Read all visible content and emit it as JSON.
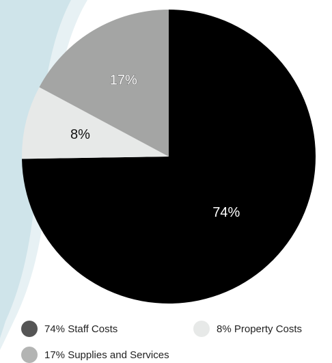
{
  "chart_data": {
    "type": "pie",
    "slices": [
      {
        "label": "Staff Costs",
        "value": 74,
        "display": "74%",
        "color": "#000000",
        "label_color": "#ffffff"
      },
      {
        "label": "Property Costs",
        "value": 8,
        "display": "8%",
        "color": "#e7e9e8",
        "label_color": "#111111"
      },
      {
        "label": "Supplies and Services",
        "value": 17,
        "display": "17%",
        "color": "#a4a5a4",
        "label_color": "#ffffff"
      }
    ],
    "start": "12 o'clock",
    "direction": "clockwise",
    "legend_position": "bottom"
  },
  "legend": {
    "items": [
      {
        "text": "74% Staff Costs",
        "color": "#555555"
      },
      {
        "text": "8% Property Costs",
        "color": "#e7e9e8"
      },
      {
        "text": "17% Supplies and Services",
        "color": "#b3b4b3"
      }
    ]
  },
  "background": {
    "deco_color": "#cfe4ea",
    "deco_edge_color": "#e7f1f4"
  }
}
